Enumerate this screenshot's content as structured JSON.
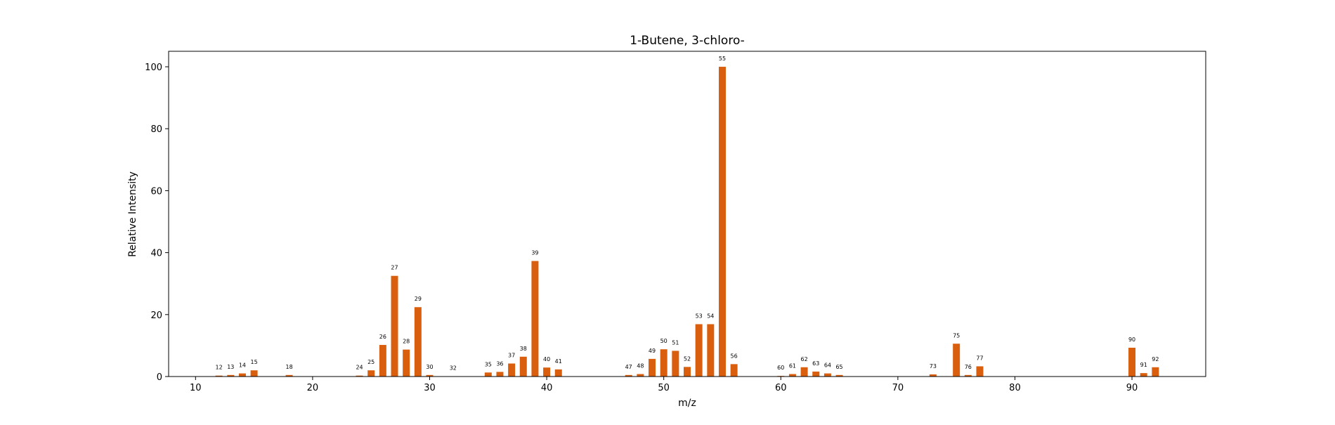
{
  "chart_data": {
    "type": "bar",
    "title": "1-Butene, 3-chloro-",
    "xlabel": "m/z",
    "ylabel": "Relative Intensity",
    "xlim": [
      7.7,
      96.3
    ],
    "ylim": [
      0,
      105
    ],
    "xticks": [
      10,
      20,
      30,
      40,
      50,
      60,
      70,
      80,
      90
    ],
    "yticks": [
      0,
      20,
      40,
      60,
      80,
      100
    ],
    "grid": false,
    "legend": "none",
    "bar_color": "#d95f0e",
    "series": [
      {
        "x": [
          12,
          13,
          14,
          15,
          18,
          24,
          25,
          26,
          27,
          28,
          29,
          30,
          32,
          35,
          36,
          37,
          38,
          39,
          40,
          41,
          47,
          48,
          49,
          50,
          51,
          52,
          53,
          54,
          55,
          56,
          60,
          61,
          62,
          63,
          64,
          65,
          73,
          75,
          76,
          77,
          90,
          91,
          92
        ],
        "values": [
          0.3,
          0.5,
          1.0,
          2.0,
          0.5,
          0.3,
          2.0,
          10.2,
          32.5,
          8.7,
          22.4,
          0.5,
          0.1,
          1.3,
          1.5,
          4.2,
          6.4,
          37.3,
          2.9,
          2.3,
          0.5,
          0.8,
          5.7,
          8.8,
          8.3,
          3.1,
          16.9,
          16.9,
          100.0,
          4.0,
          0.2,
          0.8,
          3.0,
          1.6,
          1.0,
          0.5,
          0.7,
          10.6,
          0.5,
          3.3,
          9.3,
          1.1,
          3.0
        ]
      }
    ]
  }
}
